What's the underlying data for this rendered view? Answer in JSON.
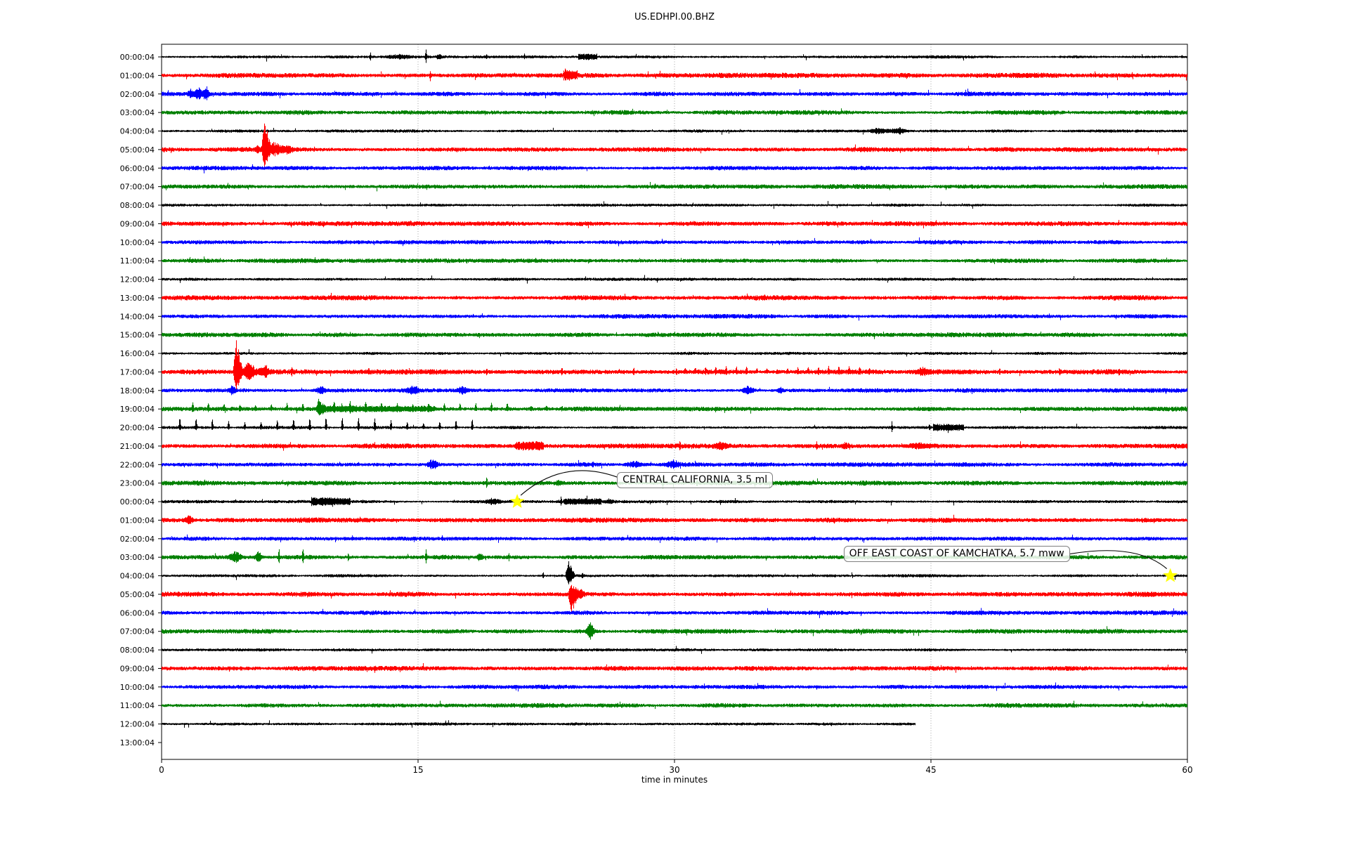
{
  "chart_data": {
    "type": "line",
    "subtype": "helicorder-dayplot",
    "title": "US.EDHPI.00.BHZ",
    "xlabel": "time in minutes",
    "x_ticks": [
      0,
      15,
      30,
      45,
      60
    ],
    "x_range_minutes": [
      0,
      60
    ],
    "minutes_per_row": 60,
    "grid_minutes": [
      15,
      30,
      45
    ],
    "color_cycle": [
      "#000000",
      "#ff0000",
      "#0000ff",
      "#008000"
    ],
    "grid_color": "#999999",
    "star_color": "#ffff00",
    "base_amp_by_color": [
      1.4,
      2.3,
      2.0,
      2.1
    ],
    "rows": [
      {
        "label": "00:00:04",
        "events": [
          {
            "t": "spike",
            "m": 12.2,
            "w": 0.12,
            "a": 5
          },
          {
            "t": "burst",
            "m": 13.9,
            "w": 1.3,
            "a": 2.5
          },
          {
            "t": "spike",
            "m": 15.45,
            "w": 0.12,
            "a": 9
          },
          {
            "t": "burst",
            "m": 16.2,
            "w": 0.25,
            "a": 3.5
          },
          {
            "t": "spike",
            "m": 19.0,
            "w": 0.1,
            "a": 3.5
          },
          {
            "t": "spike",
            "m": 21.2,
            "w": 0.1,
            "a": 3
          },
          {
            "t": "thick",
            "m": 24.9,
            "w": 1.1,
            "a": 3.5
          }
        ]
      },
      {
        "label": "01:00:04",
        "events": [
          {
            "t": "spike",
            "m": 15.7,
            "w": 0.12,
            "a": 6,
            "d": -1
          },
          {
            "t": "spike",
            "m": 23.6,
            "w": 0.1,
            "a": 5
          },
          {
            "t": "thick",
            "m": 23.9,
            "w": 0.8,
            "a": 4.5
          }
        ]
      },
      {
        "label": "02:00:04",
        "events": [
          {
            "t": "burst",
            "m": 1.7,
            "w": 0.3,
            "a": 5
          },
          {
            "t": "burst",
            "m": 2.15,
            "w": 0.45,
            "a": 8
          },
          {
            "t": "burst",
            "m": 2.6,
            "w": 0.3,
            "a": 9
          }
        ]
      },
      {
        "label": "03:00:04",
        "events": []
      },
      {
        "label": "04:00:04",
        "events": [
          {
            "t": "burst",
            "m": 42.0,
            "w": 1.0,
            "a": 4
          },
          {
            "t": "burst",
            "m": 43.1,
            "w": 0.8,
            "a": 4.5
          }
        ]
      },
      {
        "label": "05:00:04",
        "events": [
          {
            "t": "burst",
            "m": 5.6,
            "w": 0.2,
            "a": 6
          },
          {
            "t": "spike2",
            "m": 6.02,
            "w": 0.3,
            "a": 40
          },
          {
            "t": "burst",
            "m": 6.6,
            "w": 0.5,
            "a": 9
          },
          {
            "t": "burst",
            "m": 7.3,
            "w": 0.6,
            "a": 6
          }
        ]
      },
      {
        "label": "06:00:04",
        "events": []
      },
      {
        "label": "07:00:04",
        "events": []
      },
      {
        "label": "08:00:04",
        "events": []
      },
      {
        "label": "09:00:04",
        "events": []
      },
      {
        "label": "10:00:04",
        "events": []
      },
      {
        "label": "11:00:04",
        "events": []
      },
      {
        "label": "12:00:04",
        "events": []
      },
      {
        "label": "13:00:04",
        "events": []
      },
      {
        "label": "14:00:04",
        "events": []
      },
      {
        "label": "15:00:04",
        "events": []
      },
      {
        "label": "16:00:04",
        "events": []
      },
      {
        "label": "17:00:04",
        "events": [
          {
            "t": "spike2",
            "m": 4.36,
            "w": 0.35,
            "a": 45
          },
          {
            "t": "burst",
            "m": 5.1,
            "w": 0.7,
            "a": 11
          },
          {
            "t": "burst",
            "m": 6.0,
            "w": 0.5,
            "a": 8
          },
          {
            "t": "spike",
            "m": 7.6,
            "w": 0.1,
            "a": 5
          },
          {
            "t": "spike",
            "m": 12.1,
            "w": 0.1,
            "a": 4
          },
          {
            "t": "spike",
            "m": 19.0,
            "w": 0.1,
            "a": 4
          },
          {
            "t": "spike",
            "m": 23.4,
            "w": 0.1,
            "a": 4
          },
          {
            "t": "spike",
            "m": 27.6,
            "w": 0.1,
            "a": 5
          },
          {
            "t": "spike",
            "m": 30.1,
            "w": 0.1,
            "a": 4
          },
          {
            "t": "train",
            "m": 36.0,
            "w": 11.0,
            "p": 0.6,
            "a": 6,
            "d": 1
          },
          {
            "t": "burst",
            "m": 44.5,
            "w": 0.6,
            "a": 4
          },
          {
            "t": "spike",
            "m": 49.0,
            "w": 0.1,
            "a": 4
          },
          {
            "t": "spike",
            "m": 52.5,
            "w": 0.1,
            "a": 4
          },
          {
            "t": "spike",
            "m": 56.0,
            "w": 0.1,
            "a": 3.5
          }
        ]
      },
      {
        "label": "18:00:04",
        "events": [
          {
            "t": "burst",
            "m": 4.1,
            "w": 0.3,
            "a": 6
          },
          {
            "t": "burst",
            "m": 9.3,
            "w": 0.5,
            "a": 4.5
          },
          {
            "t": "burst",
            "m": 14.7,
            "w": 0.6,
            "a": 4.5
          },
          {
            "t": "burst",
            "m": 17.6,
            "w": 0.5,
            "a": 5.5
          },
          {
            "t": "burst",
            "m": 34.3,
            "w": 0.6,
            "a": 5.5
          },
          {
            "t": "burst",
            "m": 36.2,
            "w": 0.3,
            "a": 4
          }
        ]
      },
      {
        "label": "19:00:04",
        "events": [
          {
            "t": "train",
            "m": 11.0,
            "w": 20.0,
            "p": 0.92,
            "a": 8,
            "d": 1
          },
          {
            "t": "thick",
            "m": 12.5,
            "w": 7.0,
            "a": 2.5
          },
          {
            "t": "burst",
            "m": 9.3,
            "w": 0.4,
            "a": 6
          },
          {
            "t": "train",
            "m": 22.5,
            "w": 3.0,
            "p": 0.9,
            "a": 3,
            "d": 1
          }
        ]
      },
      {
        "label": "20:00:04",
        "events": [
          {
            "t": "train",
            "m": 9.6,
            "w": 18.0,
            "p": 0.95,
            "a": 14,
            "d": 1
          },
          {
            "t": "spike",
            "m": 42.7,
            "w": 0.1,
            "a": 7
          },
          {
            "t": "spike",
            "m": 44.9,
            "w": 0.1,
            "a": 4
          },
          {
            "t": "thick",
            "m": 46.0,
            "w": 1.8,
            "a": 3.5
          }
        ]
      },
      {
        "label": "21:00:04",
        "events": [
          {
            "t": "thick",
            "m": 21.5,
            "w": 1.7,
            "a": 4.5
          },
          {
            "t": "spike",
            "m": 30.3,
            "w": 0.1,
            "a": 4.5
          },
          {
            "t": "burst",
            "m": 32.7,
            "w": 0.7,
            "a": 3.5
          },
          {
            "t": "spike",
            "m": 38.3,
            "w": 0.1,
            "a": 4.5
          },
          {
            "t": "burst",
            "m": 40.0,
            "w": 0.4,
            "a": 3
          },
          {
            "t": "burst",
            "m": 44.3,
            "w": 1.2,
            "a": 2.5
          }
        ]
      },
      {
        "label": "22:00:04",
        "events": [
          {
            "t": "burst",
            "m": 15.85,
            "w": 0.6,
            "a": 6.5
          },
          {
            "t": "spike",
            "m": 25.2,
            "w": 0.1,
            "a": 3
          },
          {
            "t": "burst",
            "m": 27.6,
            "w": 0.9,
            "a": 3.5
          },
          {
            "t": "burst",
            "m": 29.9,
            "w": 0.7,
            "a": 4.5
          }
        ]
      },
      {
        "label": "23:00:04",
        "events": [
          {
            "t": "spike",
            "m": 19.0,
            "w": 0.12,
            "a": 7
          },
          {
            "t": "burst",
            "m": 23.2,
            "w": 0.3,
            "a": 3
          },
          {
            "t": "spike",
            "m": 29.3,
            "w": 0.12,
            "a": 8
          },
          {
            "t": "spike",
            "m": 31.3,
            "w": 0.1,
            "a": 4
          }
        ]
      },
      {
        "label": "00:00:04",
        "events": [
          {
            "t": "thick",
            "m": 9.9,
            "w": 2.3,
            "a": 4.5
          },
          {
            "t": "burst",
            "m": 19.4,
            "w": 0.7,
            "a": 4
          },
          {
            "t": "spike",
            "m": 20.9,
            "w": 0.1,
            "a": 5
          },
          {
            "t": "spike",
            "m": 23.35,
            "w": 0.1,
            "a": 6
          },
          {
            "t": "thick",
            "m": 24.6,
            "w": 2.2,
            "a": 3
          },
          {
            "t": "burst",
            "m": 26.2,
            "w": 0.4,
            "a": 3
          }
        ]
      },
      {
        "label": "01:00:04",
        "events": [
          {
            "t": "burst",
            "m": 1.6,
            "w": 0.45,
            "a": 5
          }
        ]
      },
      {
        "label": "02:00:04",
        "events": []
      },
      {
        "label": "03:00:04",
        "events": [
          {
            "t": "burst",
            "m": 4.3,
            "w": 0.6,
            "a": 7
          },
          {
            "t": "burst",
            "m": 5.65,
            "w": 0.3,
            "a": 8
          },
          {
            "t": "spike",
            "m": 6.85,
            "w": 0.12,
            "a": 11
          },
          {
            "t": "spike",
            "m": 8.25,
            "w": 0.15,
            "a": 9
          },
          {
            "t": "spike",
            "m": 10.9,
            "w": 0.1,
            "a": 5
          },
          {
            "t": "spike",
            "m": 15.45,
            "w": 0.12,
            "a": 10
          },
          {
            "t": "burst",
            "m": 18.6,
            "w": 0.35,
            "a": 5
          },
          {
            "t": "spike",
            "m": 20.3,
            "w": 0.1,
            "a": 4.5
          }
        ]
      },
      {
        "label": "04:00:04",
        "events": [
          {
            "t": "spike",
            "m": 22.3,
            "w": 0.1,
            "a": 5
          },
          {
            "t": "spike2",
            "m": 23.8,
            "w": 0.3,
            "a": 20
          },
          {
            "t": "spike",
            "m": 24.6,
            "w": 0.1,
            "a": 4
          }
        ]
      },
      {
        "label": "05:00:04",
        "events": [
          {
            "t": "spike2",
            "m": 23.95,
            "w": 0.25,
            "a": 24,
            "d": -1
          },
          {
            "t": "burst",
            "m": 24.4,
            "w": 0.5,
            "a": 7
          }
        ]
      },
      {
        "label": "06:00:04",
        "events": []
      },
      {
        "label": "07:00:04",
        "events": [
          {
            "t": "burst",
            "m": 25.05,
            "w": 0.35,
            "a": 12
          }
        ]
      },
      {
        "label": "08:00:04",
        "events": []
      },
      {
        "label": "09:00:04",
        "events": []
      },
      {
        "label": "10:00:04",
        "events": []
      },
      {
        "label": "11:00:04",
        "events": []
      },
      {
        "label": "12:00:04",
        "end": 44.1,
        "events": []
      },
      {
        "label": "13:00:04",
        "empty": true,
        "events": []
      }
    ],
    "annotations": [
      {
        "text": "CENTRAL CALIFORNIA, 3.5 ml",
        "row": 24,
        "minute": 20.8
      },
      {
        "text": "OFF EAST COAST OF KAMCHATKA, 5.7 mww",
        "row": 28,
        "minute": 59.0
      }
    ]
  }
}
